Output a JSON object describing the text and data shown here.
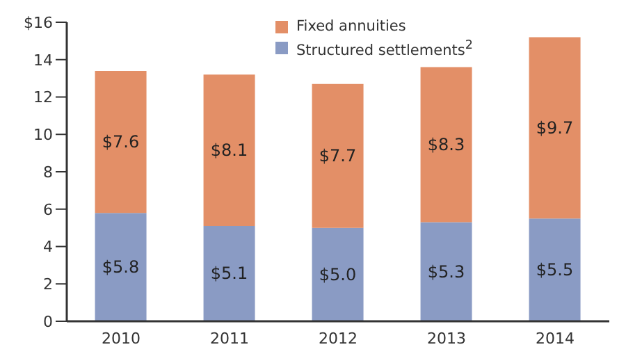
{
  "chart_data": {
    "type": "bar",
    "stacked": true,
    "categories": [
      "2010",
      "2011",
      "2012",
      "2013",
      "2014"
    ],
    "series": [
      {
        "name": "Structured settlements$^{2}$",
        "color": "#8a9bc4",
        "values": [
          5.8,
          5.1,
          5.0,
          5.3,
          5.5
        ],
        "value_labels": [
          "$5.8",
          "$5.1",
          "$5.0",
          "$5.3",
          "$5.5"
        ]
      },
      {
        "name": "Fixed annuities",
        "color": "#e38f67",
        "values": [
          7.6,
          8.1,
          7.7,
          8.3,
          9.7
        ],
        "value_labels": [
          "$7.6",
          "$8.1",
          "$7.7",
          "$8.3",
          "$9.7"
        ]
      }
    ],
    "ylim": [
      0,
      16
    ],
    "yticks": [
      0,
      2,
      4,
      6,
      8,
      10,
      12,
      14,
      {
        "value": 16,
        "label": "$16"
      }
    ],
    "grid": false,
    "legend": "top right"
  }
}
